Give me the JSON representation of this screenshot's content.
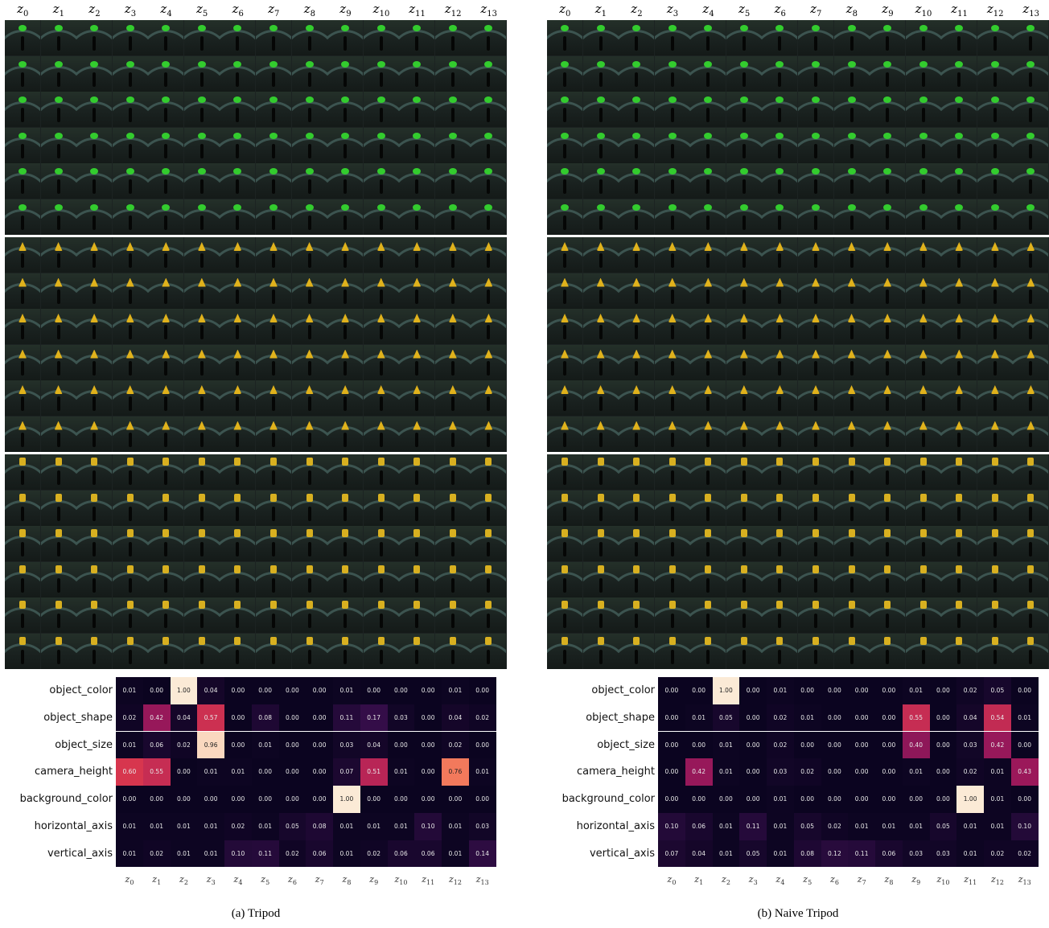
{
  "latent_labels": [
    "z0",
    "z1",
    "z2",
    "z3",
    "z4",
    "z5",
    "z6",
    "z7",
    "z8",
    "z9",
    "z10",
    "z11",
    "z12",
    "z13"
  ],
  "factors": [
    "object_color",
    "object_shape",
    "object_size",
    "camera_height",
    "background_color",
    "horizontal_axis",
    "vertical_axis"
  ],
  "panels": [
    {
      "id": "a",
      "caption": "(a) Tripod",
      "traversal_blocks": [
        {
          "object_color": "#33cc2e",
          "shape": "sphere"
        },
        {
          "object_color": "#e0b21c",
          "shape": "cone"
        },
        {
          "object_color": "#d8b020",
          "shape": "cylinder"
        }
      ],
      "matrix": [
        [
          0.01,
          0.0,
          1.0,
          0.04,
          0.0,
          0.0,
          0.0,
          0.0,
          0.01,
          0.0,
          0.0,
          0.0,
          0.01,
          0.0
        ],
        [
          0.02,
          0.42,
          0.04,
          0.57,
          0.0,
          0.08,
          0.0,
          0.0,
          0.11,
          0.17,
          0.03,
          0.0,
          0.04,
          0.02
        ],
        [
          0.01,
          0.06,
          0.02,
          0.96,
          0.0,
          0.01,
          0.0,
          0.0,
          0.03,
          0.04,
          0.0,
          0.0,
          0.02,
          0.0
        ],
        [
          0.6,
          0.55,
          0.0,
          0.01,
          0.01,
          0.0,
          0.0,
          0.0,
          0.07,
          0.51,
          0.01,
          0.0,
          0.76,
          0.01
        ],
        [
          0.0,
          0.0,
          0.0,
          0.0,
          0.0,
          0.0,
          0.0,
          0.0,
          1.0,
          0.0,
          0.0,
          0.0,
          0.0,
          0.0
        ],
        [
          0.01,
          0.01,
          0.01,
          0.01,
          0.02,
          0.01,
          0.05,
          0.08,
          0.01,
          0.01,
          0.01,
          0.1,
          0.01,
          0.03
        ],
        [
          0.01,
          0.02,
          0.01,
          0.01,
          0.1,
          0.11,
          0.02,
          0.06,
          0.01,
          0.02,
          0.06,
          0.06,
          0.01,
          0.14
        ]
      ]
    },
    {
      "id": "b",
      "caption": "(b) Naive Tripod",
      "traversal_blocks": [
        {
          "object_color": "#33cc2e",
          "shape": "sphere"
        },
        {
          "object_color": "#e0b21c",
          "shape": "cone"
        },
        {
          "object_color": "#d8b020",
          "shape": "cylinder"
        }
      ],
      "matrix": [
        [
          0.0,
          0.0,
          1.0,
          0.0,
          0.01,
          0.0,
          0.0,
          0.0,
          0.0,
          0.01,
          0.0,
          0.02,
          0.05,
          0.0
        ],
        [
          0.0,
          0.01,
          0.05,
          0.0,
          0.02,
          0.01,
          0.0,
          0.0,
          0.0,
          0.55,
          0.0,
          0.04,
          0.54,
          0.01
        ],
        [
          0.0,
          0.0,
          0.01,
          0.0,
          0.02,
          0.0,
          0.0,
          0.0,
          0.0,
          0.4,
          0.0,
          0.03,
          0.42,
          0.0
        ],
        [
          0.0,
          0.42,
          0.01,
          0.0,
          0.03,
          0.02,
          0.0,
          0.0,
          0.0,
          0.01,
          0.0,
          0.02,
          0.01,
          0.43
        ],
        [
          0.0,
          0.0,
          0.0,
          0.0,
          0.01,
          0.0,
          0.0,
          0.0,
          0.0,
          0.0,
          0.0,
          1.0,
          0.01,
          0.0
        ],
        [
          0.1,
          0.06,
          0.01,
          0.11,
          0.01,
          0.05,
          0.02,
          0.01,
          0.01,
          0.01,
          0.05,
          0.01,
          0.01,
          0.1
        ],
        [
          0.07,
          0.04,
          0.01,
          0.05,
          0.01,
          0.08,
          0.12,
          0.11,
          0.06,
          0.03,
          0.03,
          0.01,
          0.02,
          0.02
        ]
      ]
    }
  ],
  "colors": {
    "heat_low": "#0b0420",
    "heat_mid": "#a3195b",
    "heat_high": "#fbead6"
  }
}
